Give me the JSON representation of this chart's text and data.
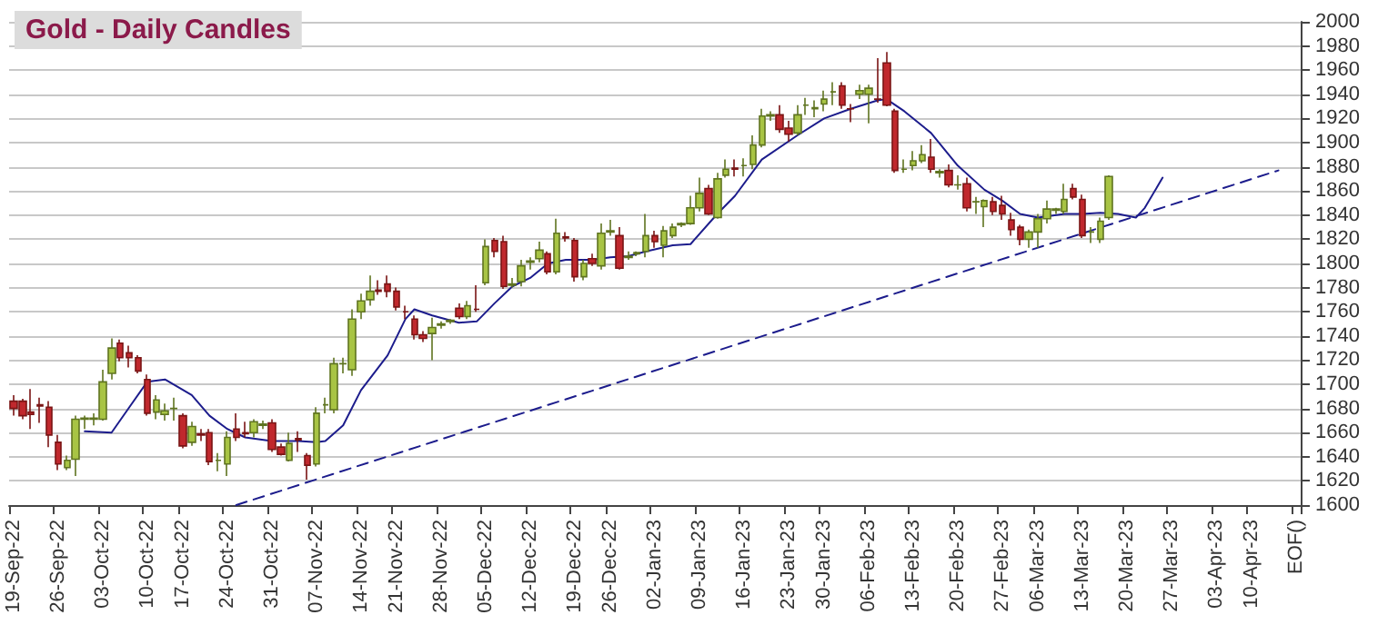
{
  "chart_data": {
    "type": "candlestick",
    "title": "Gold - Daily Candles",
    "categories": [
      "19-Sep-22",
      null,
      null,
      null,
      null,
      "26-Sep-22",
      null,
      null,
      null,
      null,
      "03-Oct-22",
      null,
      null,
      null,
      null,
      "10-Oct-22",
      null,
      null,
      null,
      "17-Oct-22",
      null,
      null,
      null,
      null,
      "24-Oct-22",
      null,
      null,
      null,
      null,
      "31-Oct-22",
      null,
      null,
      null,
      null,
      "07-Nov-22",
      null,
      null,
      null,
      null,
      "14-Nov-22",
      null,
      null,
      null,
      "21-Nov-22",
      null,
      null,
      null,
      null,
      "28-Nov-22",
      null,
      null,
      null,
      null,
      "05-Dec-22",
      null,
      null,
      null,
      null,
      "12-Dec-22",
      null,
      null,
      null,
      null,
      "19-Dec-22",
      null,
      null,
      null,
      "26-Dec-22",
      null,
      null,
      null,
      null,
      "02-Jan-23",
      null,
      null,
      null,
      null,
      "09-Jan-23",
      null,
      null,
      null,
      null,
      "16-Jan-23",
      null,
      null,
      null,
      null,
      "23-Jan-23",
      null,
      null,
      null,
      "30-Jan-23",
      null,
      null,
      null,
      null,
      "06-Feb-23",
      null,
      null,
      null,
      null,
      "13-Feb-23",
      null,
      null,
      null,
      null,
      "20-Feb-23",
      null,
      null,
      null,
      null,
      "27-Feb-23",
      null,
      null,
      null,
      "06-Mar-23",
      null,
      null,
      null,
      null,
      "13-Mar-23",
      null,
      null,
      null,
      null,
      "20-Mar-23",
      null,
      null,
      null,
      null,
      "27-Mar-23",
      null,
      null,
      null,
      null,
      "03-Apr-23",
      null,
      null,
      null,
      "10-Apr-23",
      null,
      null,
      null,
      null,
      "EOF()"
    ],
    "ohlc": [
      [
        1686,
        1691,
        1674,
        1680
      ],
      [
        1686,
        1688,
        1671,
        1674
      ],
      [
        1677,
        1696,
        1663,
        1675
      ],
      [
        1683,
        1689,
        1668,
        1682
      ],
      [
        1681,
        1686,
        1648,
        1658
      ],
      [
        1652,
        1658,
        1629,
        1634
      ],
      [
        1631,
        1641,
        1629,
        1637
      ],
      [
        1638,
        1674,
        1624,
        1671
      ],
      [
        1671,
        1674,
        1663,
        1672
      ],
      [
        1671,
        1676,
        1666,
        1672
      ],
      [
        1671,
        1712,
        1670,
        1702
      ],
      [
        1709,
        1738,
        1704,
        1730
      ],
      [
        1734,
        1737,
        1719,
        1722
      ],
      [
        1726,
        1732,
        1714,
        1722
      ],
      [
        1722,
        1724,
        1709,
        1711
      ],
      [
        1704,
        1708,
        1674,
        1676
      ],
      [
        1677,
        1691,
        1671,
        1687
      ],
      [
        1675,
        1684,
        1670,
        1678
      ],
      [
        1680,
        1689,
        1670,
        1680
      ],
      [
        1674,
        1676,
        1647,
        1649
      ],
      [
        1652,
        1669,
        1649,
        1665
      ],
      [
        1659,
        1663,
        1653,
        1658
      ],
      [
        1660,
        1663,
        1633,
        1636
      ],
      [
        1637,
        1643,
        1628,
        1637
      ],
      [
        1634,
        1661,
        1624,
        1656
      ],
      [
        1663,
        1676,
        1653,
        1656
      ],
      [
        1660,
        1669,
        1656,
        1659
      ],
      [
        1660,
        1671,
        1656,
        1669
      ],
      [
        1666,
        1670,
        1663,
        1667
      ],
      [
        1668,
        1671,
        1644,
        1646
      ],
      [
        1648,
        1651,
        1641,
        1642
      ],
      [
        1637,
        1660,
        1636,
        1651
      ],
      [
        1655,
        1661,
        1644,
        1654
      ],
      [
        1641,
        1643,
        1621,
        1633
      ],
      [
        1634,
        1681,
        1632,
        1676
      ],
      [
        1683,
        1689,
        1676,
        1683
      ],
      [
        1679,
        1722,
        1676,
        1717
      ],
      [
        1717,
        1722,
        1709,
        1717
      ],
      [
        1712,
        1762,
        1707,
        1754
      ],
      [
        1760,
        1775,
        1754,
        1769
      ],
      [
        1770,
        1790,
        1765,
        1777
      ],
      [
        1778,
        1786,
        1774,
        1777
      ],
      [
        1783,
        1790,
        1772,
        1777
      ],
      [
        1777,
        1780,
        1761,
        1764
      ],
      [
        1760,
        1765,
        1754,
        1760
      ],
      [
        1754,
        1757,
        1737,
        1741
      ],
      [
        1741,
        1744,
        1735,
        1738
      ],
      [
        1742,
        1755,
        1720,
        1747
      ],
      [
        1749,
        1752,
        1746,
        1750
      ],
      [
        1752,
        1754,
        1750,
        1753
      ],
      [
        1763,
        1767,
        1754,
        1756
      ],
      [
        1756,
        1769,
        1754,
        1765
      ],
      [
        1762,
        1782,
        1760,
        1762
      ],
      [
        1784,
        1820,
        1782,
        1814
      ],
      [
        1819,
        1821,
        1805,
        1810
      ],
      [
        1818,
        1823,
        1779,
        1781
      ],
      [
        1782,
        1788,
        1780,
        1783
      ],
      [
        1785,
        1803,
        1781,
        1798
      ],
      [
        1801,
        1805,
        1795,
        1802
      ],
      [
        1804,
        1818,
        1801,
        1811
      ],
      [
        1808,
        1810,
        1791,
        1793
      ],
      [
        1793,
        1837,
        1791,
        1825
      ],
      [
        1822,
        1826,
        1818,
        1821
      ],
      [
        1819,
        1821,
        1785,
        1789
      ],
      [
        1789,
        1803,
        1786,
        1800
      ],
      [
        1804,
        1808,
        1798,
        1800
      ],
      [
        1798,
        1833,
        1795,
        1825
      ],
      [
        1826,
        1836,
        1823,
        1827
      ],
      [
        1823,
        1830,
        1795,
        1796
      ],
      [
        1805,
        1810,
        1803,
        1806
      ],
      [
        1808,
        1810,
        1806,
        1809
      ],
      [
        1810,
        1841,
        1805,
        1823
      ],
      [
        1823,
        1827,
        1813,
        1818
      ],
      [
        1815,
        1831,
        1805,
        1827
      ],
      [
        1823,
        1833,
        1821,
        1830
      ],
      [
        1832,
        1834,
        1830,
        1833
      ],
      [
        1833,
        1856,
        1832,
        1846
      ],
      [
        1846,
        1871,
        1843,
        1858
      ],
      [
        1862,
        1865,
        1840,
        1841
      ],
      [
        1838,
        1875,
        1837,
        1870
      ],
      [
        1873,
        1886,
        1871,
        1878
      ],
      [
        1879,
        1886,
        1872,
        1878
      ],
      [
        1881,
        1887,
        1872,
        1881
      ],
      [
        1882,
        1906,
        1878,
        1898
      ],
      [
        1898,
        1928,
        1896,
        1922
      ],
      [
        1922,
        1926,
        1918,
        1923
      ],
      [
        1923,
        1931,
        1908,
        1911
      ],
      [
        1912,
        1918,
        1901,
        1907
      ],
      [
        1908,
        1931,
        1906,
        1923
      ],
      [
        1931,
        1937,
        1923,
        1931
      ],
      [
        1928,
        1935,
        1921,
        1929
      ],
      [
        1932,
        1943,
        1926,
        1936
      ],
      [
        1942,
        1950,
        1931,
        1942
      ],
      [
        1947,
        1950,
        1928,
        1931
      ],
      [
        1928,
        1932,
        1917,
        1928
      ],
      [
        1940,
        1948,
        1936,
        1943
      ],
      [
        1940,
        1948,
        1916,
        1945
      ],
      [
        1936,
        1970,
        1933,
        1936
      ],
      [
        1966,
        1975,
        1930,
        1931
      ],
      [
        1926,
        1928,
        1875,
        1877
      ],
      [
        1878,
        1886,
        1875,
        1878
      ],
      [
        1881,
        1893,
        1877,
        1885
      ],
      [
        1885,
        1898,
        1883,
        1890
      ],
      [
        1888,
        1903,
        1875,
        1878
      ],
      [
        1875,
        1878,
        1871,
        1876
      ],
      [
        1877,
        1882,
        1863,
        1865
      ],
      [
        1865,
        1873,
        1861,
        1865
      ],
      [
        1866,
        1871,
        1843,
        1846
      ],
      [
        1851,
        1855,
        1841,
        1851
      ],
      [
        1847,
        1853,
        1830,
        1852
      ],
      [
        1851,
        1855,
        1840,
        1843
      ],
      [
        1848,
        1856,
        1836,
        1841
      ],
      [
        1836,
        1842,
        1823,
        1828
      ],
      [
        1830,
        1832,
        1815,
        1820
      ],
      [
        1820,
        1828,
        1813,
        1826
      ],
      [
        1826,
        1841,
        1813,
        1837
      ],
      [
        1837,
        1852,
        1833,
        1845
      ],
      [
        1844,
        1846,
        1841,
        1845
      ],
      [
        1843,
        1866,
        1841,
        1853
      ],
      [
        1862,
        1866,
        1853,
        1855
      ],
      [
        1853,
        1857,
        1821,
        1823
      ],
      [
        1826,
        1830,
        1817,
        1826
      ],
      [
        1820,
        1838,
        1817,
        1835
      ],
      [
        1838,
        1873,
        1836,
        1872
      ],
      null,
      null,
      null,
      null,
      null,
      null,
      null,
      null,
      null,
      null,
      null,
      null,
      null,
      null,
      null,
      null,
      null,
      null,
      null,
      null,
      null
    ],
    "series": [
      {
        "type": "line",
        "color": "#1c1c8c",
        "values": [
          null,
          null,
          null,
          null,
          null,
          null,
          null,
          null,
          1661,
          null,
          null,
          1660,
          null,
          1681,
          null,
          1702,
          null,
          1704,
          null,
          null,
          1691,
          null,
          1674,
          null,
          1663,
          null,
          1656,
          null,
          null,
          1653,
          null,
          null,
          1653,
          null,
          1652,
          1653,
          null,
          1666,
          null,
          1695,
          null,
          null,
          1724,
          null,
          1754,
          1762,
          null,
          1757,
          null,
          null,
          1751,
          null,
          1752,
          null,
          1767,
          null,
          1781,
          null,
          1788,
          null,
          1800,
          null,
          1803,
          null,
          null,
          1803,
          null,
          1805,
          null,
          1806,
          null,
          1810,
          null,
          null,
          1815,
          null,
          1816,
          null,
          null,
          1841,
          null,
          1856,
          null,
          null,
          1886,
          null,
          null,
          null,
          1906,
          null,
          null,
          1920,
          null,
          null,
          1928,
          null,
          null,
          1935,
          1936,
          null,
          1926,
          null,
          null,
          1908,
          null,
          null,
          1881,
          null,
          null,
          1861,
          null,
          1852,
          null,
          1841,
          null,
          1838,
          null,
          null,
          1841,
          null,
          1841,
          null,
          1842,
          null,
          1841,
          null,
          1838,
          1846,
          null,
          1871,
          null,
          null,
          null,
          null,
          null,
          null,
          null,
          null,
          null,
          null,
          null,
          null,
          null,
          null,
          null
        ]
      },
      {
        "type": "line",
        "color": "#1c1c8c",
        "line_style": "dashed",
        "values": [
          null,
          null,
          null,
          null,
          null,
          null,
          null,
          null,
          null,
          null,
          null,
          null,
          null,
          null,
          null,
          null,
          null,
          null,
          null,
          null,
          null,
          null,
          null,
          null,
          null,
          1600,
          null,
          null,
          null,
          null,
          null,
          null,
          null,
          null,
          null,
          null,
          null,
          null,
          null,
          null,
          null,
          null,
          null,
          null,
          null,
          null,
          null,
          null,
          null,
          null,
          null,
          null,
          null,
          null,
          null,
          null,
          null,
          null,
          null,
          null,
          null,
          null,
          null,
          null,
          null,
          null,
          null,
          null,
          null,
          null,
          null,
          null,
          null,
          null,
          null,
          null,
          null,
          null,
          null,
          null,
          null,
          null,
          null,
          null,
          null,
          null,
          null,
          null,
          null,
          null,
          null,
          null,
          null,
          null,
          null,
          null,
          null,
          null,
          null,
          null,
          null,
          null,
          null,
          null,
          null,
          null,
          null,
          null,
          null,
          null,
          null,
          null,
          null,
          null,
          null,
          null,
          null,
          null,
          null,
          null,
          null,
          null,
          null,
          null,
          null,
          null,
          null,
          null,
          null,
          null,
          null,
          null,
          null,
          null,
          null,
          null,
          null,
          null,
          null,
          null,
          null,
          null,
          1877,
          null,
          null
        ]
      }
    ],
    "ylim": [
      1600,
      2000
    ],
    "yticks": [
      1600,
      1620,
      1640,
      1660,
      1680,
      1700,
      1720,
      1740,
      1760,
      1780,
      1800,
      1820,
      1840,
      1860,
      1880,
      1900,
      1920,
      1940,
      1960,
      1980,
      2000
    ],
    "grid": "y"
  }
}
